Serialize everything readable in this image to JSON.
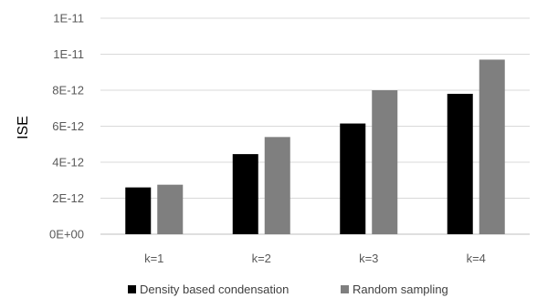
{
  "chart_data": {
    "type": "bar",
    "title": "",
    "xlabel": "",
    "ylabel": "ISE",
    "categories": [
      "k=1",
      "k=2",
      "k=3",
      "k=4"
    ],
    "series": [
      {
        "name": "Density based condensation",
        "color": "#000000",
        "values": [
          2.6e-12,
          4.45e-12,
          6.15e-12,
          7.8e-12
        ]
      },
      {
        "name": "Random sampling",
        "color": "#7f7f7f",
        "values": [
          2.75e-12,
          5.4e-12,
          8e-12,
          9.7e-12
        ]
      }
    ],
    "ylim": [
      0,
      1.2e-11
    ],
    "yticks": [
      0,
      2e-12,
      4e-12,
      6e-12,
      8e-12,
      1e-11,
      1.2e-11
    ],
    "ytick_labels": [
      "0E+00",
      "2E-12",
      "4E-12",
      "6E-12",
      "8E-12",
      "1E-11",
      "1E-11"
    ],
    "grid": true,
    "legend_position": "bottom"
  }
}
